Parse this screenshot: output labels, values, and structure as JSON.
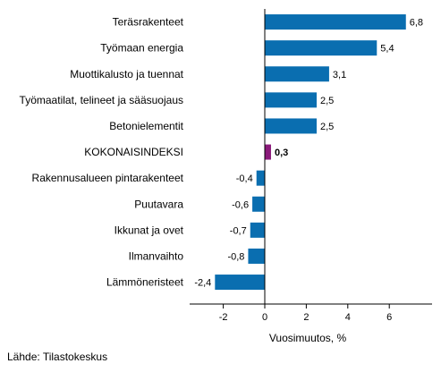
{
  "chart_data": {
    "type": "bar",
    "orientation": "horizontal",
    "categories": [
      "Teräsrakenteet",
      "Työmaan energia",
      "Muottikalusto ja tuennat",
      "Työmaatilat, telineet ja sääsuojaus",
      "Betonielementit",
      "KOKONAISINDEKSI",
      "Rakennusalueen pintarakenteet",
      "Puutavara",
      "Ikkunat ja ovet",
      "Ilmanvaihto",
      "Lämmöneristeet"
    ],
    "values": [
      6.8,
      5.4,
      3.1,
      2.5,
      2.5,
      0.3,
      -0.4,
      -0.6,
      -0.7,
      -0.8,
      -2.4
    ],
    "value_labels": [
      "6,8",
      "5,4",
      "3,1",
      "2,5",
      "2,5",
      "0,3",
      "-0,4",
      "-0,6",
      "-0,7",
      "-0,8",
      "-2,4"
    ],
    "highlight_index": 5,
    "xlim": [
      -3.6,
      8.0
    ],
    "xticks": [
      -2,
      0,
      2,
      4,
      6
    ],
    "xtick_labels": [
      "-2",
      "0",
      "2",
      "4",
      "6"
    ],
    "xlabel": "Vuosimuutos, %",
    "ylabel": "",
    "title": "",
    "grid": false,
    "legend": "none",
    "colors": {
      "bar": "#0a6eb0",
      "highlight": "#8a1a7a",
      "axis": "#000000"
    }
  },
  "source": "Lähde: Tilastokeskus"
}
